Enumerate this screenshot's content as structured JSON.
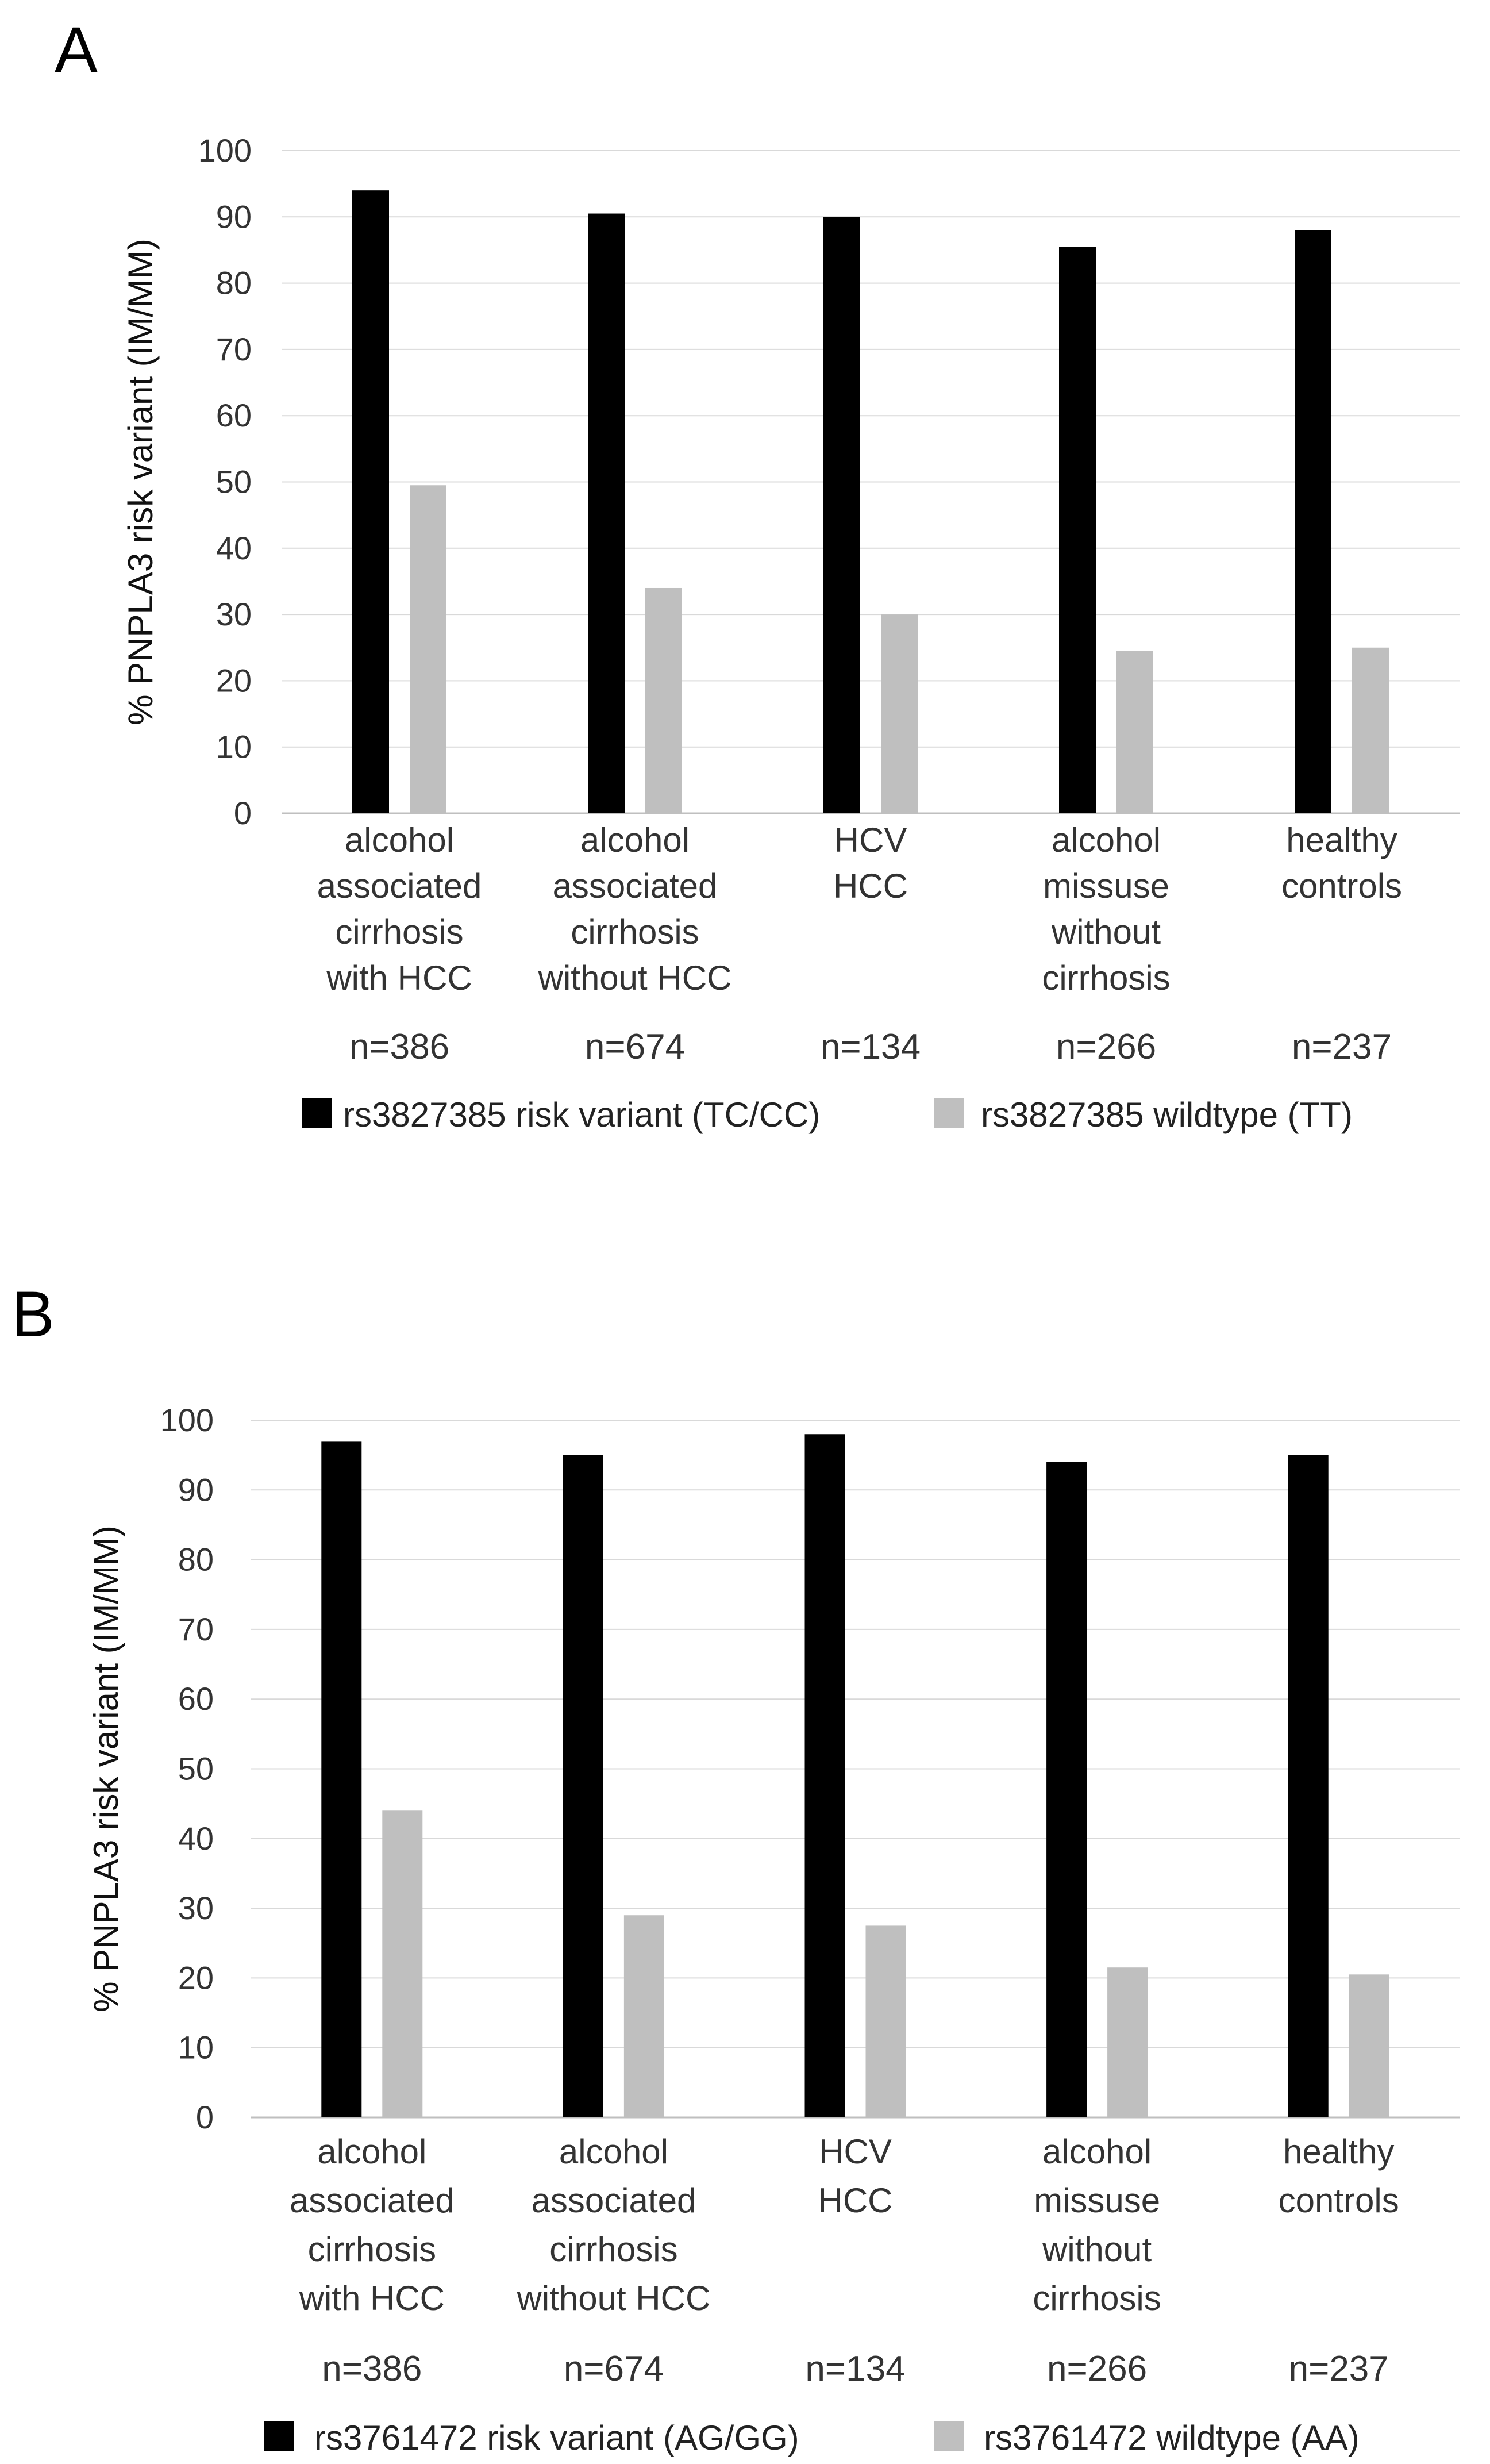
{
  "chart_data": [
    {
      "panel": "A",
      "type": "bar",
      "ylabel": "% PNPLA3 risk variant (IM/MM)",
      "ylim": [
        0,
        100
      ],
      "yticks": [
        0,
        10,
        20,
        30,
        40,
        50,
        60,
        70,
        80,
        90,
        100
      ],
      "grid": true,
      "categories": [
        [
          "alcohol",
          "associated",
          "cirrhosis",
          "with HCC"
        ],
        [
          "alcohol",
          "associated",
          "cirrhosis",
          "without HCC"
        ],
        [
          "HCV",
          "HCC"
        ],
        [
          "alcohol",
          "missuse",
          "without",
          "cirrhosis"
        ],
        [
          "healthy",
          "controls"
        ]
      ],
      "n_labels": [
        "n=386",
        "n=674",
        "n=134",
        "n=266",
        "n=237"
      ],
      "series": [
        {
          "name": "rs3827385 risk variant (TC/CC)",
          "color": "#000000",
          "values": [
            94,
            90.5,
            90,
            85.5,
            88
          ]
        },
        {
          "name": "rs3827385 wildtype (TT)",
          "color": "#bfbfbf",
          "values": [
            49.5,
            34,
            30,
            24.5,
            25
          ]
        }
      ],
      "legend_position": "bottom"
    },
    {
      "panel": "B",
      "type": "bar",
      "ylabel": "% PNPLA3 risk variant (IM/MM)",
      "ylim": [
        0,
        100
      ],
      "yticks": [
        0,
        10,
        20,
        30,
        40,
        50,
        60,
        70,
        80,
        90,
        100
      ],
      "grid": true,
      "categories": [
        [
          "alcohol",
          "associated",
          "cirrhosis",
          "with HCC"
        ],
        [
          "alcohol",
          "associated",
          "cirrhosis",
          "without HCC"
        ],
        [
          "HCV",
          "HCC"
        ],
        [
          "alcohol",
          "missuse",
          "without",
          "cirrhosis"
        ],
        [
          "healthy",
          "controls"
        ]
      ],
      "n_labels": [
        "n=386",
        "n=674",
        "n=134",
        "n=266",
        "n=237"
      ],
      "series": [
        {
          "name": "rs3761472 risk variant (AG/GG)",
          "color": "#000000",
          "values": [
            97,
            95,
            98,
            94,
            95
          ]
        },
        {
          "name": "rs3761472 wildtype (AA)",
          "color": "#bfbfbf",
          "values": [
            44,
            29,
            27.5,
            21.5,
            20.5
          ]
        }
      ],
      "legend_position": "bottom"
    }
  ]
}
